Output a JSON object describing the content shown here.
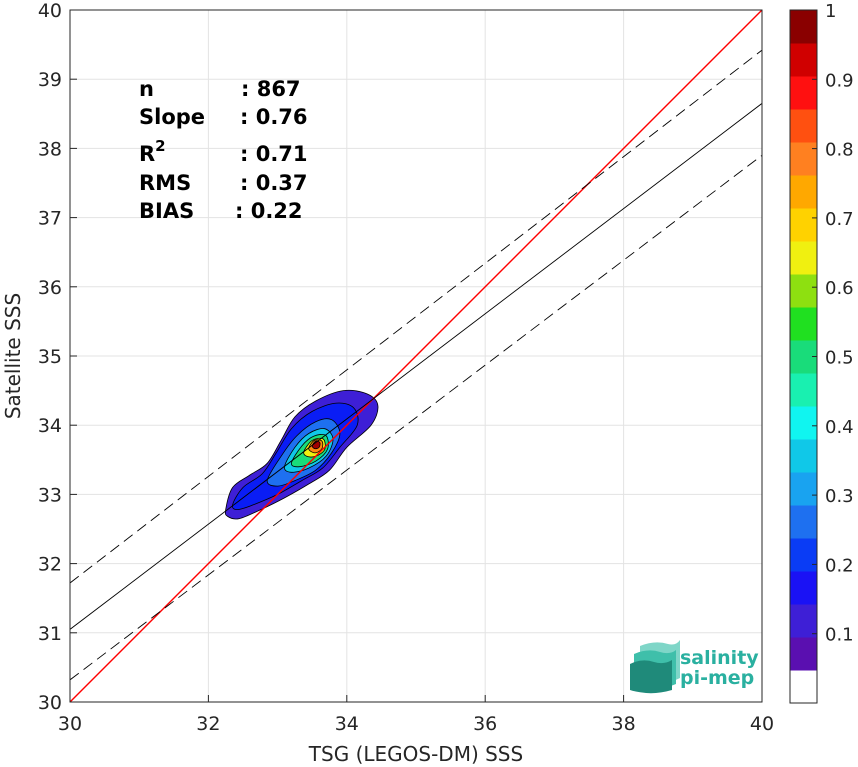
{
  "chart_data": {
    "type": "scatter",
    "title": "",
    "xlabel": "TSG (LEGOS-DM) SSS",
    "ylabel": "Satellite SSS",
    "xlim": [
      30,
      40
    ],
    "ylim": [
      30,
      40
    ],
    "xticks": [
      "30",
      "32",
      "34",
      "36",
      "38",
      "40"
    ],
    "yticks": [
      "30",
      "31",
      "32",
      "33",
      "34",
      "35",
      "36",
      "37",
      "38",
      "39",
      "40"
    ],
    "grid": true,
    "stats": [
      {
        "label": "n",
        "value": ": 867"
      },
      {
        "label": "Slope",
        "value": ": 0.76"
      },
      {
        "label": "R",
        "sup": "2",
        "value": ": 0.71"
      },
      {
        "label": "RMS",
        "value": ": 0.37"
      },
      {
        "label": "BIAS",
        "value": ": 0.22"
      }
    ],
    "lines": [
      {
        "name": "one-to-one",
        "color": "#ff0000",
        "style": "solid",
        "points": [
          [
            30,
            30
          ],
          [
            40,
            40
          ]
        ]
      },
      {
        "name": "regression",
        "color": "#000000",
        "style": "solid",
        "points": [
          [
            30,
            31.05
          ],
          [
            40,
            38.65
          ]
        ]
      },
      {
        "name": "regression-plus-rms",
        "color": "#000000",
        "style": "dashed",
        "points": [
          [
            30,
            31.72
          ],
          [
            40,
            39.42
          ]
        ]
      },
      {
        "name": "regression-minus-rms",
        "color": "#000000",
        "style": "dashed",
        "points": [
          [
            30,
            30.32
          ],
          [
            40,
            37.9
          ]
        ]
      }
    ],
    "density": {
      "description_levels": [
        0.05,
        0.1,
        0.2,
        0.3,
        0.45,
        0.6,
        0.75,
        0.9
      ],
      "peak": [
        33.55,
        33.72
      ],
      "contours": [
        {
          "level": 0.05,
          "color": "#3e1fd6",
          "points": [
            [
              32.25,
              32.78
            ],
            [
              32.35,
              33.1
            ],
            [
              32.6,
              33.28
            ],
            [
              32.85,
              33.45
            ],
            [
              33.05,
              33.78
            ],
            [
              33.25,
              34.12
            ],
            [
              33.55,
              34.35
            ],
            [
              33.95,
              34.5
            ],
            [
              34.3,
              34.45
            ],
            [
              34.45,
              34.28
            ],
            [
              34.35,
              34.0
            ],
            [
              34.0,
              33.68
            ],
            [
              33.75,
              33.35
            ],
            [
              33.45,
              33.15
            ],
            [
              33.1,
              32.95
            ],
            [
              32.8,
              32.8
            ],
            [
              32.45,
              32.65
            ],
            [
              32.28,
              32.68
            ]
          ]
        },
        {
          "level": 0.1,
          "color": "#0a1df5",
          "points": [
            [
              32.35,
              32.85
            ],
            [
              32.5,
              33.1
            ],
            [
              32.78,
              33.3
            ],
            [
              32.98,
              33.6
            ],
            [
              33.2,
              33.95
            ],
            [
              33.5,
              34.2
            ],
            [
              33.85,
              34.32
            ],
            [
              34.1,
              34.25
            ],
            [
              34.15,
              34.0
            ],
            [
              33.9,
              33.68
            ],
            [
              33.65,
              33.38
            ],
            [
              33.35,
              33.2
            ],
            [
              33.0,
              33.0
            ],
            [
              32.65,
              32.85
            ],
            [
              32.42,
              32.78
            ]
          ]
        },
        {
          "level": 0.2,
          "color": "#1e70f0",
          "points": [
            [
              32.85,
              33.2
            ],
            [
              33.05,
              33.55
            ],
            [
              33.28,
              33.85
            ],
            [
              33.55,
              34.05
            ],
            [
              33.78,
              34.08
            ],
            [
              33.9,
              33.88
            ],
            [
              33.78,
              33.6
            ],
            [
              33.55,
              33.35
            ],
            [
              33.25,
              33.2
            ],
            [
              33.0,
              33.12
            ]
          ]
        },
        {
          "level": 0.3,
          "color": "#10c8e8",
          "points": [
            [
              33.1,
              33.4
            ],
            [
              33.25,
              33.68
            ],
            [
              33.45,
              33.88
            ],
            [
              33.68,
              33.95
            ],
            [
              33.8,
              33.8
            ],
            [
              33.7,
              33.55
            ],
            [
              33.45,
              33.38
            ],
            [
              33.2,
              33.32
            ]
          ]
        },
        {
          "level": 0.45,
          "color": "#19dc7a",
          "points": [
            [
              33.2,
              33.45
            ],
            [
              33.35,
              33.7
            ],
            [
              33.52,
              33.84
            ],
            [
              33.7,
              33.85
            ],
            [
              33.72,
              33.65
            ],
            [
              33.55,
              33.48
            ],
            [
              33.32,
              33.4
            ]
          ]
        },
        {
          "level": 0.6,
          "color": "#f0f010",
          "points": [
            [
              33.38,
              33.62
            ],
            [
              33.5,
              33.78
            ],
            [
              33.66,
              33.8
            ],
            [
              33.68,
              33.65
            ],
            [
              33.55,
              33.55
            ],
            [
              33.42,
              33.55
            ]
          ]
        },
        {
          "level": 0.75,
          "color": "#ff8a10",
          "points": [
            [
              33.45,
              33.66
            ],
            [
              33.53,
              33.78
            ],
            [
              33.64,
              33.77
            ],
            [
              33.64,
              33.66
            ],
            [
              33.54,
              33.6
            ]
          ]
        },
        {
          "level": 0.9,
          "color": "#a00000",
          "points": [
            [
              33.5,
              33.7
            ],
            [
              33.55,
              33.77
            ],
            [
              33.61,
              33.75
            ],
            [
              33.6,
              33.68
            ],
            [
              33.54,
              33.66
            ]
          ]
        }
      ]
    },
    "colorbar": {
      "range": [
        0,
        1
      ],
      "ticks": [
        "0.1",
        "0.2",
        "0.3",
        "0.4",
        "0.5",
        "0.6",
        "0.7",
        "0.8",
        "0.9",
        "1"
      ],
      "colors": [
        "#ffffff",
        "#5a0fb0",
        "#3e1fd6",
        "#1a12f5",
        "#0a3cf5",
        "#1e70f0",
        "#19a3f0",
        "#10c8e8",
        "#10f5f0",
        "#19f0b0",
        "#19dc7a",
        "#20e020",
        "#8ee010",
        "#f0f010",
        "#ffd200",
        "#ffa800",
        "#ff8020",
        "#ff5010",
        "#ff1010",
        "#d00000",
        "#8a0000"
      ]
    }
  },
  "logo": {
    "line1": "salinity",
    "line2": "pi-mep",
    "icon": "wave-layers-icon",
    "color": "#2ab0a0"
  }
}
